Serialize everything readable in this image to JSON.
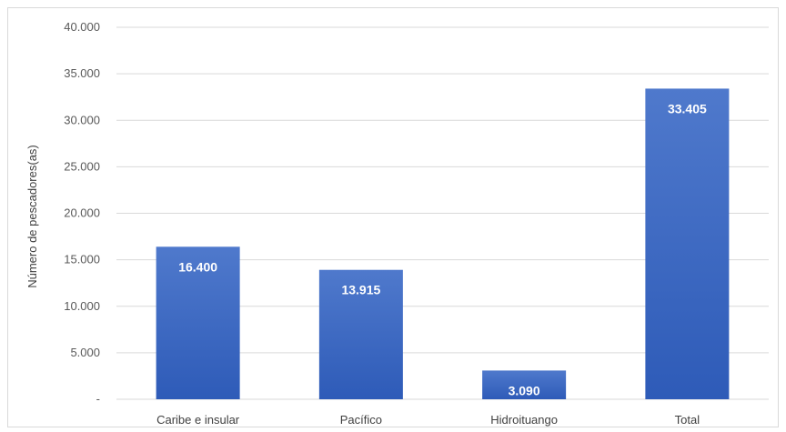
{
  "chart_data": {
    "type": "bar",
    "title": "",
    "xlabel": "",
    "ylabel": "Número de pescadores(as)",
    "ylim": [
      0,
      40000
    ],
    "yticks": [
      0,
      5000,
      10000,
      15000,
      20000,
      25000,
      30000,
      35000,
      40000
    ],
    "ytick_labels": [
      "-",
      "5.000",
      "10.000",
      "15.000",
      "20.000",
      "25.000",
      "30.000",
      "35.000",
      "40.000"
    ],
    "categories": [
      "Caribe e insular",
      "Pacífico",
      "Hidroituango",
      "Total"
    ],
    "values": [
      16400,
      13915,
      3090,
      33405
    ],
    "value_labels": [
      "16.400",
      "13.915",
      "3.090",
      "33.405"
    ],
    "grid": true,
    "legend": "none",
    "colors": {
      "bar_top": "#4f79cc",
      "bar_bottom": "#2e5bb8",
      "grid": "#d9d9d9"
    }
  }
}
